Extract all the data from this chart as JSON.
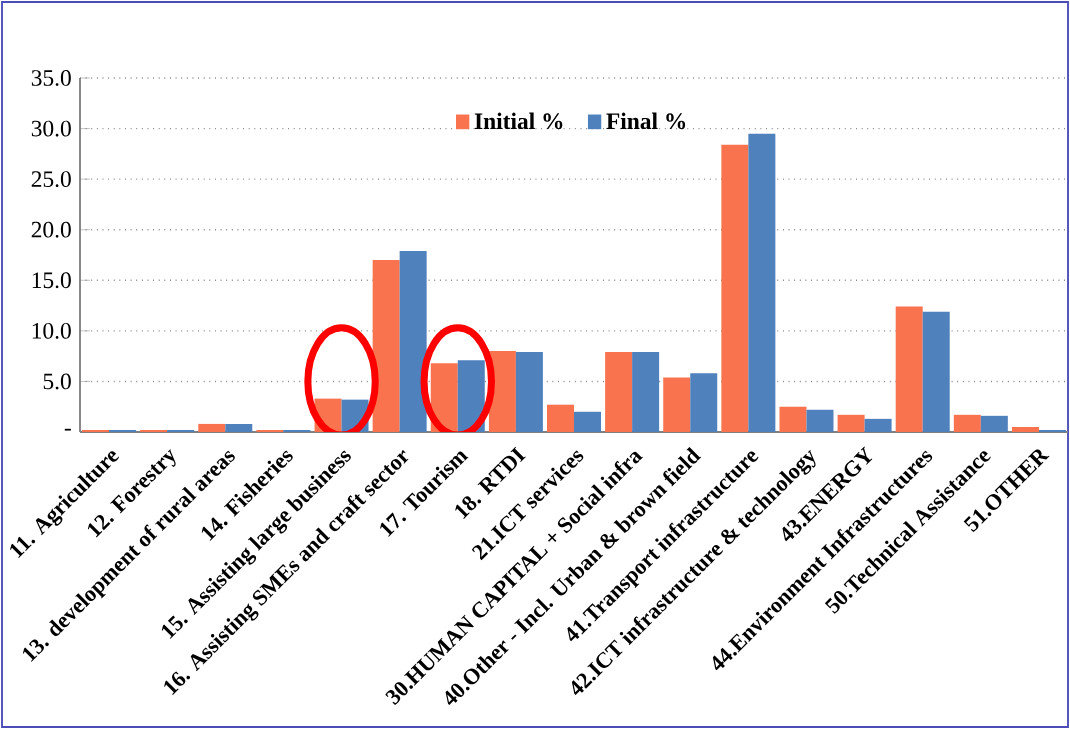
{
  "chart_data": {
    "type": "bar",
    "categories": [
      "11. Agriculture",
      "12. Forestry",
      "13. development of rural areas",
      "14. Fisheries",
      "15. Assisting large business",
      "16. Assisting SMEs and craft sector",
      "17. Tourism",
      "18. RTDI",
      "21.ICT services",
      "30.HUMAN CAPITAL + Social infra",
      "40.Other - Incl. Urban & brown field",
      "41.Transport infrastructure",
      "42.ICT infrastructure & technology",
      "43.ENERGY",
      "44.Environment Infrastructures",
      "50.Technical Assistance",
      "51.OTHER"
    ],
    "series": [
      {
        "name": "Initial %",
        "color": "#f9734e",
        "values": [
          0.2,
          0.2,
          0.8,
          0.2,
          3.3,
          17.0,
          6.8,
          8.0,
          2.7,
          7.9,
          5.4,
          28.4,
          2.5,
          1.7,
          12.4,
          1.7,
          0.5
        ]
      },
      {
        "name": "Final %",
        "color": "#4f81bd",
        "values": [
          0.2,
          0.2,
          0.8,
          0.2,
          3.2,
          17.9,
          7.1,
          7.9,
          2.0,
          7.9,
          5.8,
          29.5,
          2.2,
          1.3,
          11.9,
          1.6,
          0.2
        ]
      }
    ],
    "ylim": [
      0,
      35
    ],
    "yticks": [
      {
        "value": 0,
        "label": "-"
      },
      {
        "value": 5,
        "label": "5.0"
      },
      {
        "value": 10,
        "label": "10.0"
      },
      {
        "value": 15,
        "label": "15.0"
      },
      {
        "value": 20,
        "label": "20.0"
      },
      {
        "value": 25,
        "label": "25.0"
      },
      {
        "value": 30,
        "label": "30.0"
      },
      {
        "value": 35,
        "label": "35.0"
      }
    ],
    "grid": "y",
    "legend": "top"
  }
}
